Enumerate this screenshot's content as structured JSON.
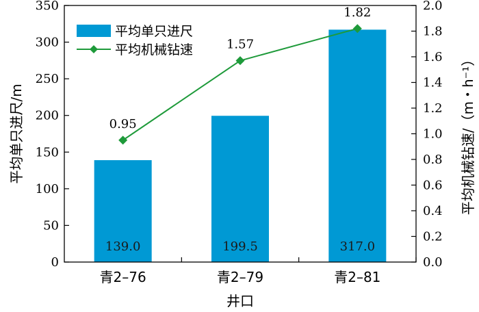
{
  "chart_data": {
    "type": "bar",
    "categories": [
      "青2–76",
      "青2–79",
      "青2–81"
    ],
    "series": [
      {
        "name": "平均单只进尺",
        "type": "bar",
        "axis": "left",
        "values": [
          139.0,
          199.5,
          317.0
        ],
        "labels": [
          "139.0",
          "199.5",
          "317.0"
        ],
        "color": "#0099d4"
      },
      {
        "name": "平均机械钻速",
        "type": "line",
        "axis": "right",
        "values": [
          0.95,
          1.57,
          1.82
        ],
        "labels": [
          "0.95",
          "1.57",
          "1.82"
        ],
        "color": "#1e9a3a"
      }
    ],
    "xlabel": "井口",
    "ylabel_left": "平均单只进尺/m",
    "ylabel_right": "平均机械钻速/（m・h⁻¹）",
    "ylim_left": [
      0,
      350
    ],
    "ylim_right": [
      0,
      2.0
    ],
    "yticks_left": [
      "0",
      "50",
      "100",
      "150",
      "200",
      "250",
      "300",
      "350"
    ],
    "yticks_right": [
      "0.0",
      "0.2",
      "0.4",
      "0.6",
      "0.8",
      "1.0",
      "1.2",
      "1.4",
      "1.6",
      "1.8",
      "2.0"
    ],
    "grid": false,
    "legend_position": "top-left"
  }
}
